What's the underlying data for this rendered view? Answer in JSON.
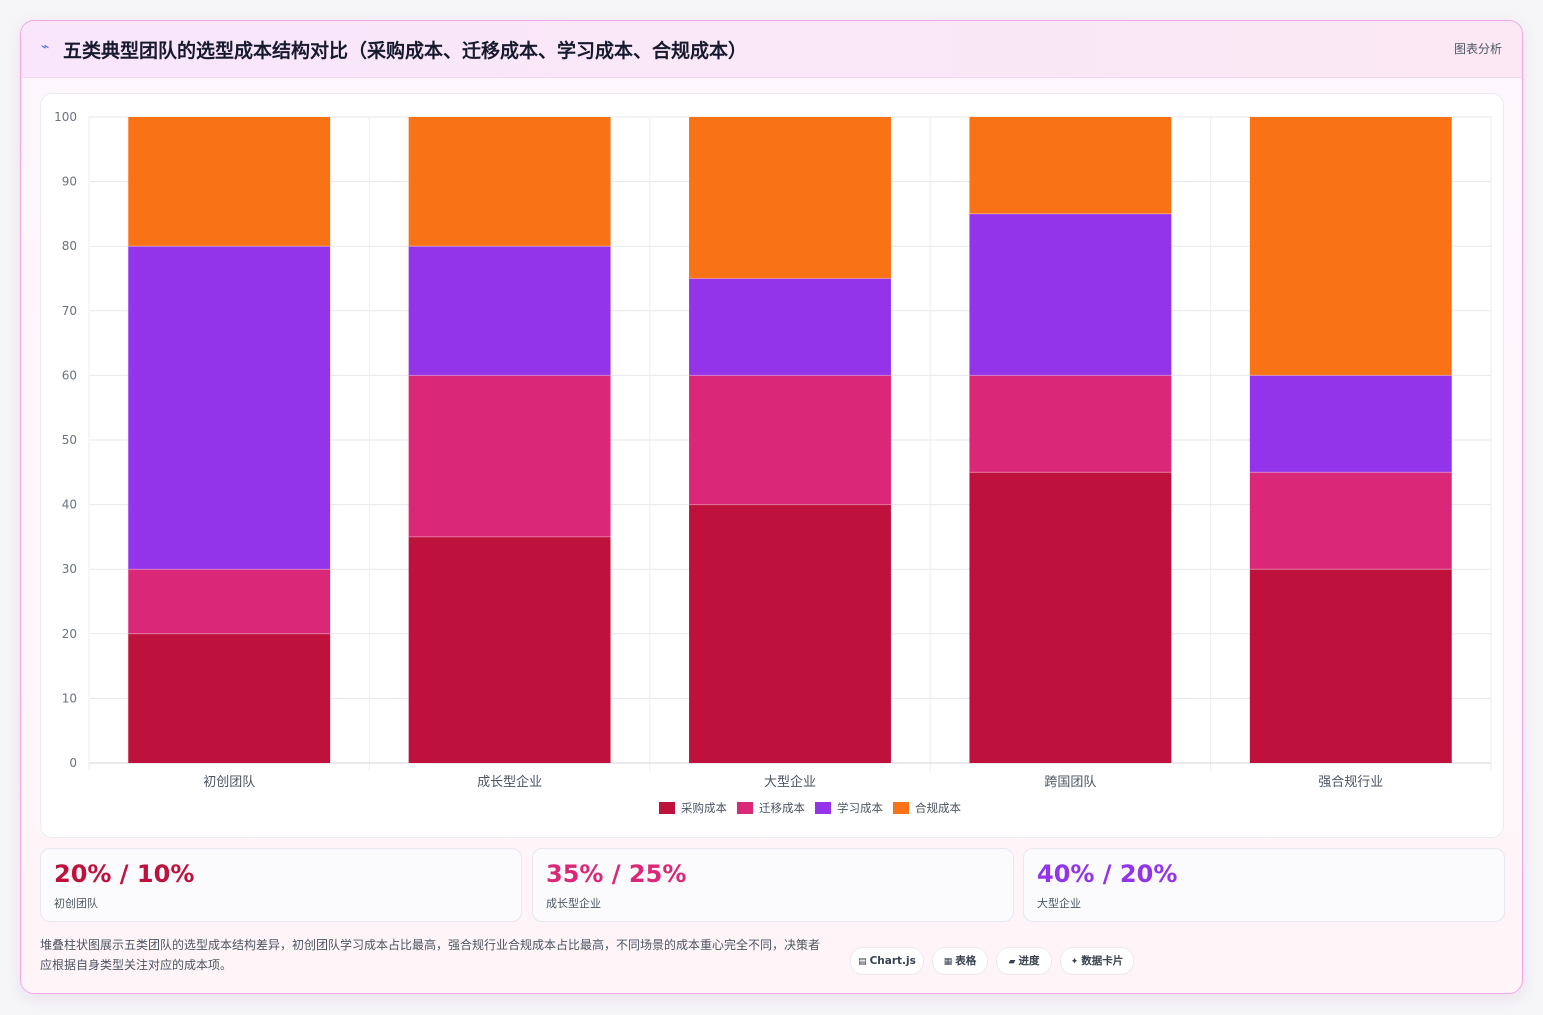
{
  "header": {
    "icon": "chart-icon",
    "title": "五类典型团队的选型成本结构对比（采购成本、迁移成本、学习成本、合规成本）",
    "tag": "图表分析"
  },
  "chart_data": {
    "type": "bar",
    "stacked": true,
    "categories": [
      "初创团队",
      "成长型企业",
      "大型企业",
      "跨国团队",
      "强合规行业"
    ],
    "series": [
      {
        "name": "采购成本",
        "color": "#be123c",
        "values": [
          20,
          35,
          40,
          45,
          30
        ]
      },
      {
        "name": "迁移成本",
        "color": "#db2777",
        "values": [
          10,
          25,
          20,
          15,
          15
        ]
      },
      {
        "name": "学习成本",
        "color": "#9333ea",
        "values": [
          50,
          20,
          15,
          25,
          15
        ]
      },
      {
        "name": "合规成本",
        "color": "#f97316",
        "values": [
          20,
          20,
          25,
          15,
          40
        ]
      }
    ],
    "ylim": [
      0,
      100
    ],
    "yticks": [
      0,
      10,
      20,
      30,
      40,
      50,
      60,
      70,
      80,
      90,
      100
    ],
    "grid": true,
    "legend": "bottom"
  },
  "stats": [
    {
      "value": "20% / 10%",
      "label": "初创团队",
      "color": "#be123c"
    },
    {
      "value": "35% / 25%",
      "label": "成长型企业",
      "color": "#db2777"
    },
    {
      "value": "40% / 20%",
      "label": "大型企业",
      "color": "#9333ea"
    }
  ],
  "description": "堆叠柱状图展示五类团队的选型成本结构差异，初创团队学习成本占比最高，强合规行业合规成本占比最高，不同场景的成本重心完全不同，决策者应根据自身类型关注对应的成本项。",
  "chips": [
    {
      "icon": "▤",
      "label": "Chart.js"
    },
    {
      "icon": "▦",
      "label": "表格"
    },
    {
      "icon": "▰",
      "label": "进度"
    },
    {
      "icon": "✦",
      "label": "数据卡片"
    }
  ]
}
